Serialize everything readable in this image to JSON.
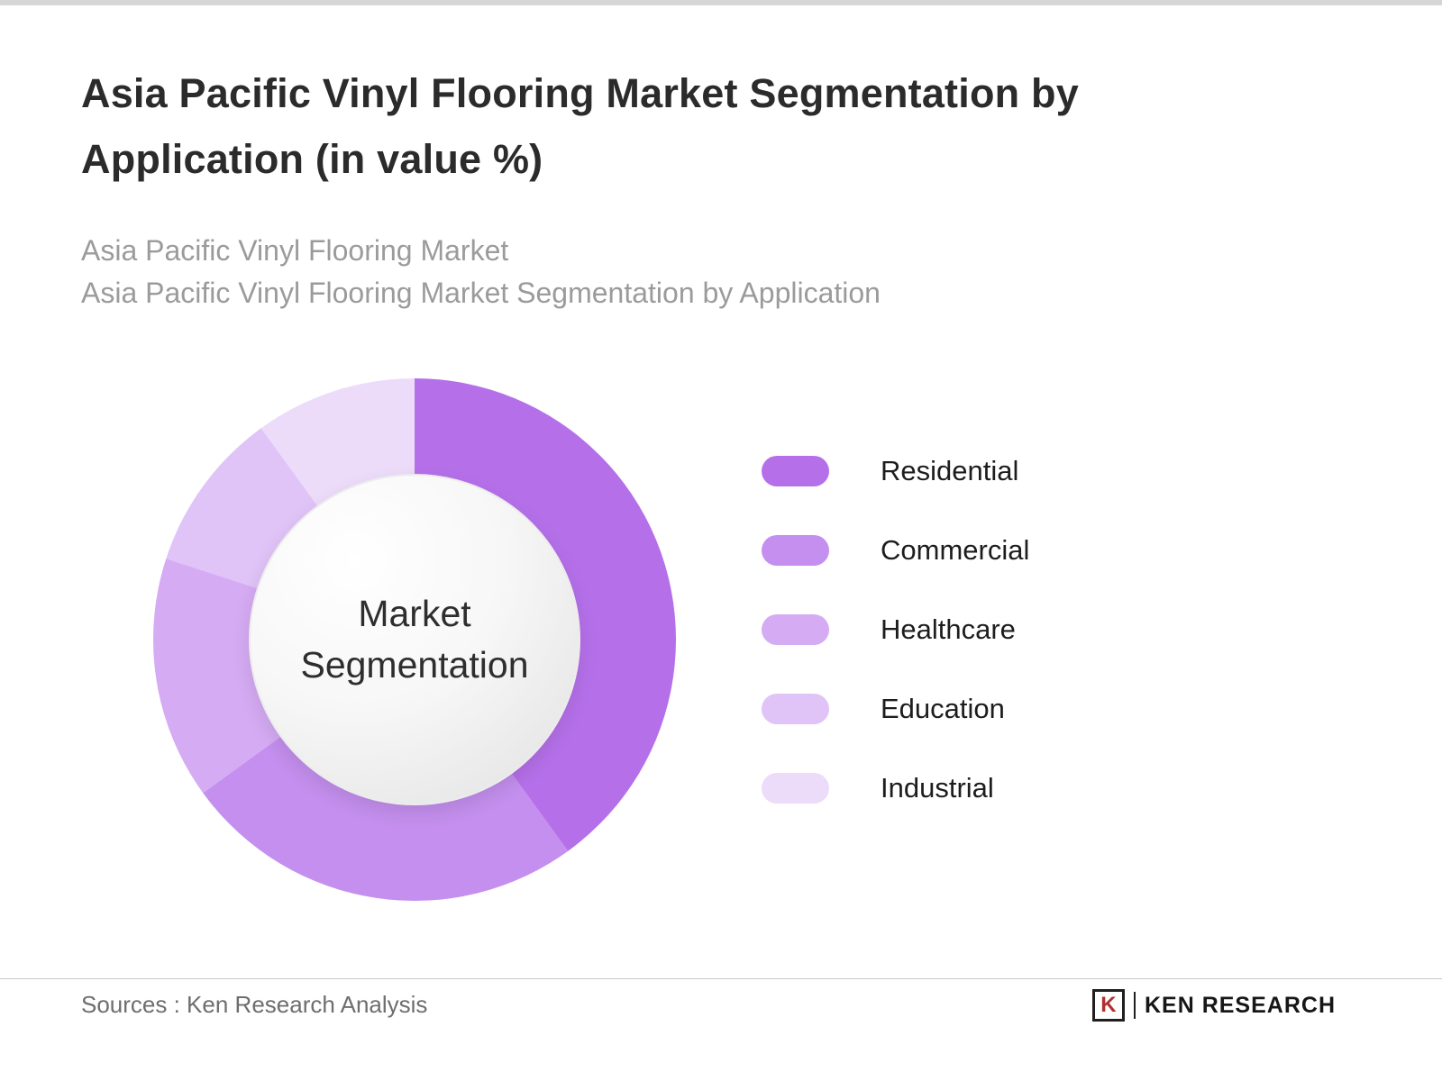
{
  "header": {
    "title": "Asia Pacific Vinyl Flooring Market Segmentation by Application (in value %)",
    "subtitle_1": "Asia Pacific Vinyl Flooring Market",
    "subtitle_2": "Asia Pacific Vinyl Flooring Market Segmentation by Application"
  },
  "chart_data": {
    "type": "pie",
    "donut": true,
    "title": "Asia Pacific Vinyl Flooring Market Segmentation by Application (in value %)",
    "center_label": "Market Segmentation",
    "categories": [
      "Residential",
      "Commercial",
      "Healthcare",
      "Education",
      "Industrial"
    ],
    "values": [
      40,
      25,
      15,
      10,
      10
    ],
    "unit": "percent",
    "colors": [
      "#b570e9",
      "#c48fee",
      "#d5abf3",
      "#e0c3f7",
      "#ecdcfa"
    ],
    "legend_position": "right",
    "start_angle_deg": 0,
    "direction": "clockwise"
  },
  "footer": {
    "sources": "Sources : Ken Research Analysis",
    "logo_letter": "K",
    "logo_text": "KEN RESEARCH"
  }
}
